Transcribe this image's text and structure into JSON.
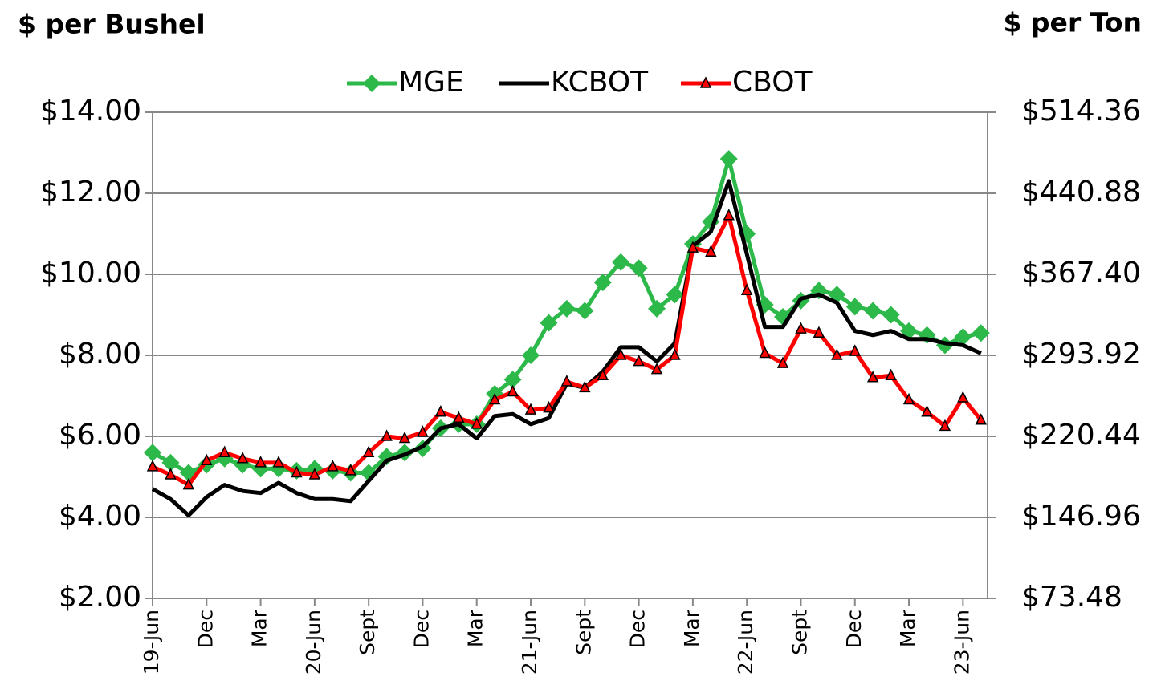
{
  "chart_data": {
    "type": "line",
    "y_label": "$ per Bushel",
    "y2_label": "$ per Ton",
    "categories": [
      "19-Jun",
      null,
      null,
      "Dec",
      null,
      null,
      "Mar",
      null,
      null,
      "20-Jun",
      null,
      null,
      "Sept",
      null,
      null,
      "Dec",
      null,
      null,
      "Mar",
      null,
      null,
      "21-Jun",
      null,
      null,
      "Sept",
      null,
      null,
      "Dec",
      null,
      null,
      "Mar",
      null,
      null,
      "22-Jun",
      null,
      null,
      "Sept",
      null,
      null,
      "Dec",
      null,
      null,
      "Mar",
      null,
      null,
      "23-Jun",
      null
    ],
    "series": [
      {
        "name": "MGE",
        "color": "#2db84a",
        "marker": "diamond",
        "values": [
          5.6,
          5.35,
          5.1,
          5.3,
          5.45,
          5.3,
          5.2,
          5.2,
          5.15,
          5.2,
          5.15,
          5.1,
          5.1,
          5.5,
          5.6,
          5.7,
          6.2,
          6.3,
          6.3,
          7.05,
          7.4,
          8.0,
          8.8,
          9.15,
          9.1,
          9.8,
          10.3,
          10.15,
          9.15,
          9.5,
          10.75,
          11.3,
          12.85,
          11.0,
          9.25,
          8.95,
          9.35,
          9.6,
          9.5,
          9.2,
          9.1,
          9.0,
          8.6,
          8.5,
          8.25,
          8.45,
          8.55
        ]
      },
      {
        "name": "KCBOT",
        "color": "#000000",
        "marker": "none",
        "values": [
          4.7,
          4.45,
          4.05,
          4.5,
          4.8,
          4.65,
          4.6,
          4.85,
          4.6,
          4.45,
          4.45,
          4.4,
          4.9,
          5.4,
          5.55,
          5.75,
          6.2,
          6.3,
          5.95,
          6.5,
          6.55,
          6.3,
          6.45,
          7.3,
          7.2,
          7.6,
          8.2,
          8.2,
          7.85,
          8.3,
          10.7,
          11.05,
          12.3,
          10.5,
          8.7,
          8.7,
          9.4,
          9.5,
          9.3,
          8.6,
          8.5,
          8.6,
          8.4,
          8.4,
          8.3,
          8.25,
          8.05
        ]
      },
      {
        "name": "CBOT",
        "color": "#ff0000",
        "marker": "triangle",
        "values": [
          5.25,
          5.05,
          4.8,
          5.4,
          5.6,
          5.45,
          5.35,
          5.35,
          5.1,
          5.05,
          5.25,
          5.15,
          5.6,
          6.0,
          5.95,
          6.1,
          6.6,
          6.45,
          6.3,
          6.9,
          7.1,
          6.65,
          6.7,
          7.35,
          7.2,
          7.5,
          8.0,
          7.85,
          7.65,
          8.0,
          10.65,
          10.55,
          11.45,
          9.6,
          8.05,
          7.8,
          8.65,
          8.55,
          8.0,
          8.1,
          7.45,
          7.5,
          6.9,
          6.6,
          6.25,
          6.95,
          6.4
        ]
      }
    ],
    "ylim": [
      2,
      14
    ],
    "yticks": [
      {
        "value": 2,
        "label": "$2.00"
      },
      {
        "value": 4,
        "label": "$4.00"
      },
      {
        "value": 6,
        "label": "$6.00"
      },
      {
        "value": 8,
        "label": "$8.00"
      },
      {
        "value": 10,
        "label": "$10.00"
      },
      {
        "value": 12,
        "label": "$12.00"
      },
      {
        "value": 14,
        "label": "$14.00"
      }
    ],
    "y2lim": [
      73.48,
      514.36
    ],
    "y2ticks": [
      {
        "value": 73.48,
        "label": "$73.48"
      },
      {
        "value": 146.96,
        "label": "$146.96"
      },
      {
        "value": 220.44,
        "label": "$220.44"
      },
      {
        "value": 293.92,
        "label": "$293.92"
      },
      {
        "value": 367.4,
        "label": "$367.40"
      },
      {
        "value": 440.88,
        "label": "$440.88"
      },
      {
        "value": 514.36,
        "label": "$514.36"
      }
    ],
    "grid": true,
    "legend": "top"
  }
}
